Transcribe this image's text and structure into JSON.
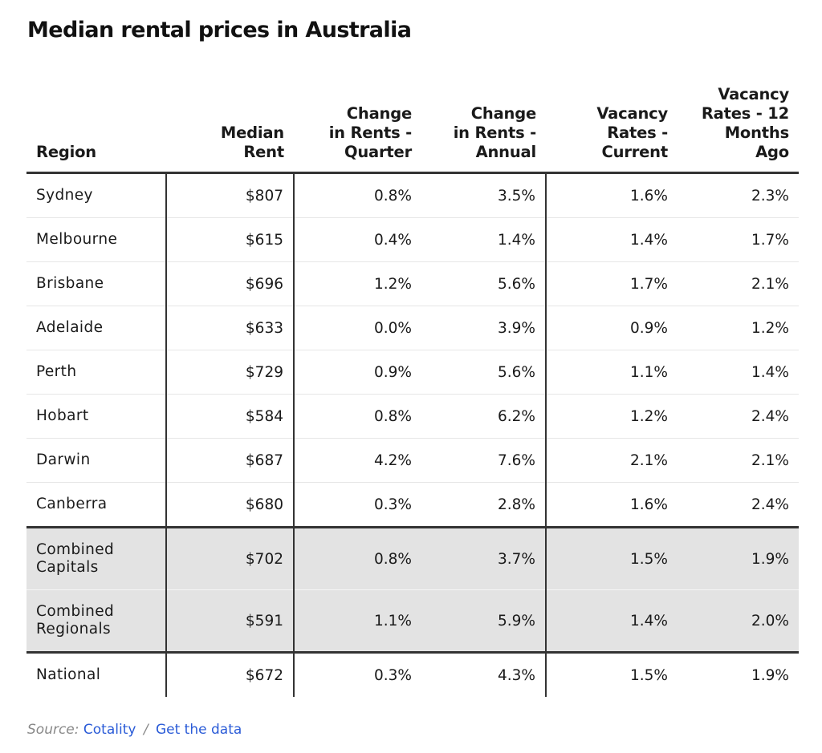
{
  "chart_data": {
    "type": "table",
    "title": "Median rental prices in Australia",
    "columns": [
      "Region",
      "Median Rent",
      "Change in Rents - Quarter",
      "Change in Rents - Annual",
      "Vacancy Rates - Current",
      "Vacancy Rates - 12 Months Ago"
    ],
    "header_lines": [
      [
        "Region"
      ],
      [
        "Median",
        "Rent"
      ],
      [
        "Change",
        "in Rents -",
        "Quarter"
      ],
      [
        "Change",
        "in Rents -",
        "Annual"
      ],
      [
        "Vacancy",
        "Rates -",
        "Current"
      ],
      [
        "Vacancy",
        "Rates - 12",
        "Months",
        "Ago"
      ]
    ],
    "rows": [
      {
        "region": "Sydney",
        "region_lines": [
          "Sydney"
        ],
        "median_rent": "$807",
        "change_quarter": "0.8%",
        "change_annual": "3.5%",
        "vacancy_current": "1.6%",
        "vacancy_12m": "2.3%"
      },
      {
        "region": "Melbourne",
        "region_lines": [
          "Melbourne"
        ],
        "median_rent": "$615",
        "change_quarter": "0.4%",
        "change_annual": "1.4%",
        "vacancy_current": "1.4%",
        "vacancy_12m": "1.7%"
      },
      {
        "region": "Brisbane",
        "region_lines": [
          "Brisbane"
        ],
        "median_rent": "$696",
        "change_quarter": "1.2%",
        "change_annual": "5.6%",
        "vacancy_current": "1.7%",
        "vacancy_12m": "2.1%"
      },
      {
        "region": "Adelaide",
        "region_lines": [
          "Adelaide"
        ],
        "median_rent": "$633",
        "change_quarter": "0.0%",
        "change_annual": "3.9%",
        "vacancy_current": "0.9%",
        "vacancy_12m": "1.2%"
      },
      {
        "region": "Perth",
        "region_lines": [
          "Perth"
        ],
        "median_rent": "$729",
        "change_quarter": "0.9%",
        "change_annual": "5.6%",
        "vacancy_current": "1.1%",
        "vacancy_12m": "1.4%"
      },
      {
        "region": "Hobart",
        "region_lines": [
          "Hobart"
        ],
        "median_rent": "$584",
        "change_quarter": "0.8%",
        "change_annual": "6.2%",
        "vacancy_current": "1.2%",
        "vacancy_12m": "2.4%"
      },
      {
        "region": "Darwin",
        "region_lines": [
          "Darwin"
        ],
        "median_rent": "$687",
        "change_quarter": "4.2%",
        "change_annual": "7.6%",
        "vacancy_current": "2.1%",
        "vacancy_12m": "2.1%"
      },
      {
        "region": "Canberra",
        "region_lines": [
          "Canberra"
        ],
        "median_rent": "$680",
        "change_quarter": "0.3%",
        "change_annual": "2.8%",
        "vacancy_current": "1.6%",
        "vacancy_12m": "2.4%"
      },
      {
        "region": "Combined Capitals",
        "region_lines": [
          "Combined",
          "Capitals"
        ],
        "median_rent": "$702",
        "change_quarter": "0.8%",
        "change_annual": "3.7%",
        "vacancy_current": "1.5%",
        "vacancy_12m": "1.9%",
        "shaded": true
      },
      {
        "region": "Combined Regionals",
        "region_lines": [
          "Combined",
          "Regionals"
        ],
        "median_rent": "$591",
        "change_quarter": "1.1%",
        "change_annual": "5.9%",
        "vacancy_current": "1.4%",
        "vacancy_12m": "2.0%",
        "shaded": true
      },
      {
        "region": "National",
        "region_lines": [
          "National"
        ],
        "median_rent": "$672",
        "change_quarter": "0.3%",
        "change_annual": "4.3%",
        "vacancy_current": "1.5%",
        "vacancy_12m": "1.9%"
      }
    ]
  },
  "source": {
    "label": "Source:",
    "name": "Cotality",
    "separator": "/",
    "link_text": "Get the data"
  },
  "colors": {
    "shade": "#e3e3e3",
    "rule": "#333333",
    "link": "#2a5bd7",
    "muted": "#888888"
  }
}
